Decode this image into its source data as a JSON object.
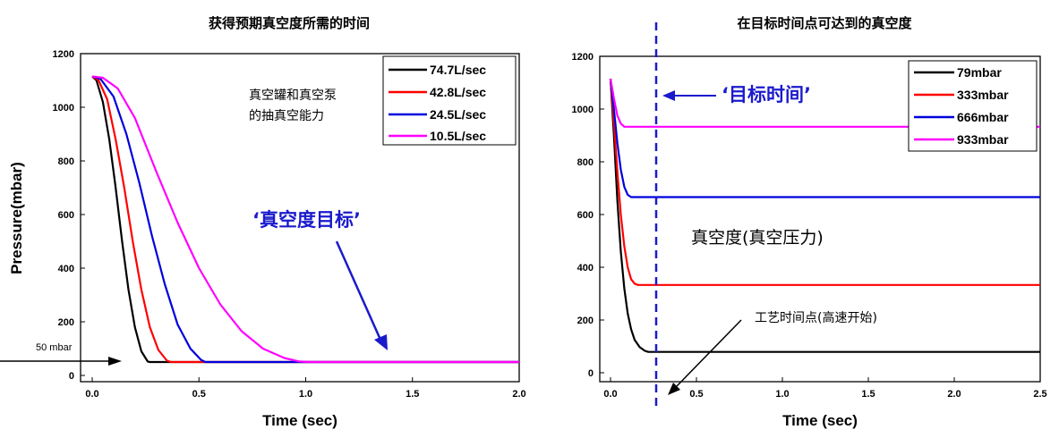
{
  "chart_data": [
    {
      "type": "line",
      "title": "获得预期真空度所需的时间",
      "xlabel": "Time (sec)",
      "ylabel": "Pressure(mbar)",
      "xlim": [
        0,
        2.0
      ],
      "ylim": [
        0,
        1200
      ],
      "xticks": [
        "0.0",
        "0.5",
        "1.0",
        "1.5",
        "2.0"
      ],
      "yticks": [
        "0",
        "200",
        "400",
        "600",
        "800",
        "1000",
        "1200"
      ],
      "legend_position": "top-right",
      "series": [
        {
          "name": "74.7L/sec",
          "color": "#000000",
          "x": [
            0,
            0.02,
            0.05,
            0.08,
            0.11,
            0.14,
            0.17,
            0.2,
            0.23,
            0.26,
            0.27,
            0.5,
            1.0,
            1.5,
            2.0
          ],
          "y": [
            1115,
            1100,
            1020,
            880,
            700,
            500,
            320,
            180,
            90,
            52,
            50,
            50,
            50,
            50,
            50
          ]
        },
        {
          "name": "42.8L/sec",
          "color": "#ff0000",
          "x": [
            0,
            0.03,
            0.07,
            0.11,
            0.15,
            0.19,
            0.23,
            0.27,
            0.31,
            0.35,
            0.37,
            0.6,
            1.0,
            1.5,
            2.0
          ],
          "y": [
            1115,
            1100,
            1030,
            880,
            700,
            500,
            320,
            180,
            95,
            55,
            50,
            50,
            50,
            50,
            50
          ]
        },
        {
          "name": "24.5L/sec",
          "color": "#0000dd",
          "x": [
            0,
            0.04,
            0.1,
            0.16,
            0.22,
            0.28,
            0.34,
            0.4,
            0.46,
            0.51,
            0.53,
            0.8,
            1.0,
            1.5,
            2.0
          ],
          "y": [
            1115,
            1105,
            1040,
            900,
            720,
            520,
            340,
            190,
            100,
            58,
            50,
            50,
            50,
            50,
            50
          ]
        },
        {
          "name": "10.5L/sec",
          "color": "#ff00ff",
          "x": [
            0,
            0.05,
            0.12,
            0.2,
            0.3,
            0.4,
            0.5,
            0.6,
            0.7,
            0.8,
            0.9,
            0.97,
            1.02,
            1.5,
            2.0
          ],
          "y": [
            1115,
            1110,
            1070,
            960,
            760,
            570,
            400,
            265,
            165,
            100,
            65,
            52,
            50,
            50,
            50
          ]
        }
      ]
    },
    {
      "type": "line",
      "title": "在目标时间点可达到的真空度",
      "xlabel": "Time (sec)",
      "ylabel": "",
      "xlim": [
        0,
        2.5
      ],
      "ylim": [
        0,
        1200
      ],
      "xticks": [
        "0.0",
        "0.5",
        "1.0",
        "1.5",
        "2.0",
        "2.5"
      ],
      "yticks": [
        "0",
        "200",
        "400",
        "600",
        "800",
        "1000",
        "1200"
      ],
      "legend_position": "top-right",
      "series": [
        {
          "name": "79mbar",
          "color": "#000000",
          "x": [
            0,
            0.02,
            0.04,
            0.06,
            0.08,
            0.1,
            0.12,
            0.14,
            0.17,
            0.2,
            0.22,
            0.5,
            1.0,
            1.5,
            2.0,
            2.5
          ],
          "y": [
            1115,
            900,
            650,
            460,
            320,
            225,
            165,
            125,
            97,
            83,
            79,
            79,
            79,
            79,
            79,
            79
          ]
        },
        {
          "name": "333mbar",
          "color": "#ff0000",
          "x": [
            0,
            0.02,
            0.04,
            0.06,
            0.08,
            0.1,
            0.12,
            0.14,
            0.16,
            0.5,
            1.0,
            1.5,
            2.0,
            2.5
          ],
          "y": [
            1115,
            950,
            760,
            600,
            480,
            400,
            355,
            338,
            333,
            333,
            333,
            333,
            333,
            333
          ]
        },
        {
          "name": "666mbar",
          "color": "#0000dd",
          "x": [
            0,
            0.02,
            0.04,
            0.06,
            0.08,
            0.1,
            0.12,
            0.5,
            1.0,
            1.5,
            2.0,
            2.5
          ],
          "y": [
            1115,
            1000,
            870,
            770,
            705,
            675,
            666,
            666,
            666,
            666,
            666,
            666
          ]
        },
        {
          "name": "933mbar",
          "color": "#ff00ff",
          "x": [
            0,
            0.02,
            0.04,
            0.06,
            0.08,
            0.5,
            1.0,
            1.5,
            2.0,
            2.5
          ],
          "y": [
            1115,
            1040,
            975,
            945,
            933,
            933,
            933,
            933,
            933,
            933
          ]
        }
      ]
    }
  ],
  "annotations": {
    "left_pump_capacity_line1": "真空罐和真空泵",
    "left_pump_capacity_line2": "的抽真空能力",
    "left_vacuum_target": "‘真空度目标’",
    "left_50mbar": "50 mbar",
    "right_target_time": "‘目标时间’",
    "right_vacuum_pressure": "真空度(真空压力)",
    "right_process_time": "工艺时间点(高速开始)"
  },
  "colors": {
    "annotation_blue": "#1a1acc",
    "dashed_line_blue": "#1a1acc"
  }
}
